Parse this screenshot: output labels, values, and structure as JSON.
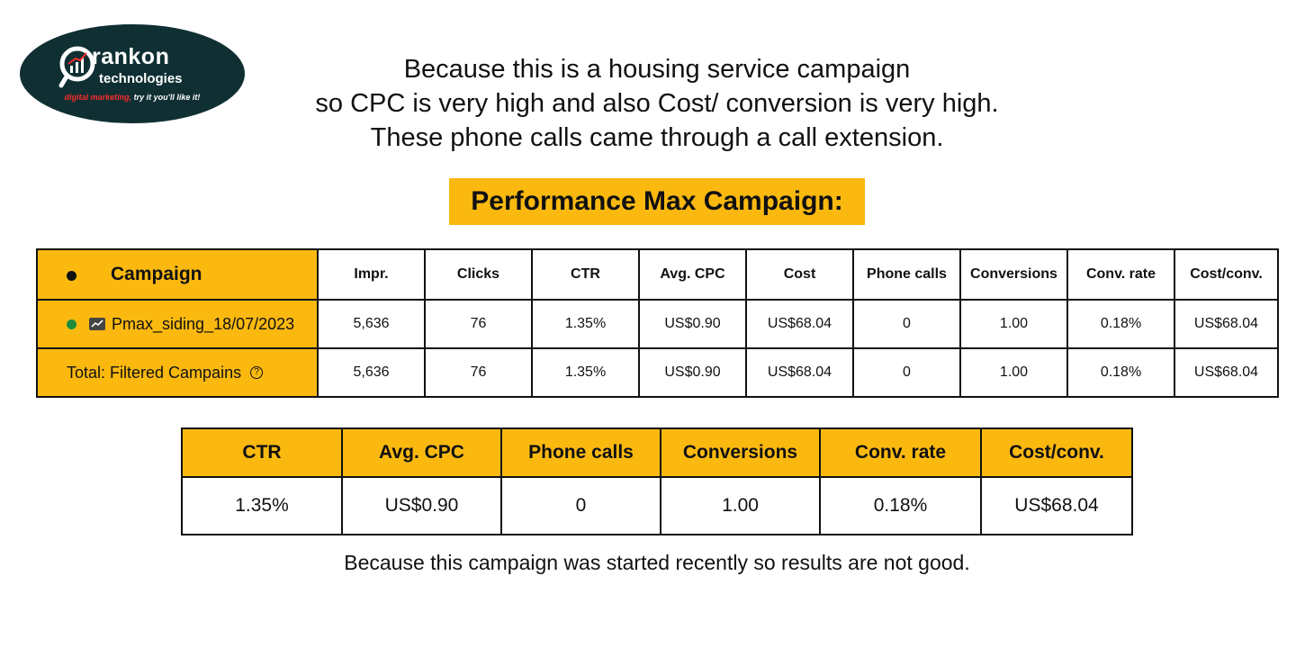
{
  "logo": {
    "name": "rankon",
    "sub": "technologies",
    "tag_red": "digital marketing,",
    "tag_white": " try it you'll like it!"
  },
  "intro": {
    "line1": "Because this is a housing service campaign",
    "line2": "so CPC is very high and also Cost/ conversion is very high.",
    "line3": "These phone calls came through a call extension."
  },
  "heading": "Performance Max Campaign:",
  "table1": {
    "headers": [
      "Campaign",
      "Impr.",
      "Clicks",
      "CTR",
      "Avg. CPC",
      "Cost",
      "Phone calls",
      "Conversions",
      "Conv. rate",
      "Cost/conv."
    ],
    "rows": [
      {
        "campaign": "Pmax_siding_18/07/2023",
        "values": [
          "5,636",
          "76",
          "1.35%",
          "US$0.90",
          "US$68.04",
          "0",
          "1.00",
          "0.18%",
          "US$68.04"
        ]
      },
      {
        "campaign": "Total: Filtered Campains",
        "values": [
          "5,636",
          "76",
          "1.35%",
          "US$0.90",
          "US$68.04",
          "0",
          "1.00",
          "0.18%",
          "US$68.04"
        ]
      }
    ]
  },
  "table2": {
    "headers": [
      "CTR",
      "Avg. CPC",
      "Phone calls",
      "Conversions",
      "Conv. rate",
      "Cost/conv."
    ],
    "values": [
      "1.35%",
      "US$0.90",
      "0",
      "1.00",
      "0.18%",
      "US$68.04"
    ]
  },
  "footer": "Because this campaign was started recently so results are not good.",
  "colors": {
    "accent": "#fbb910",
    "logo_bg": "#0f2f33",
    "status_green": "#1e8e3e"
  }
}
